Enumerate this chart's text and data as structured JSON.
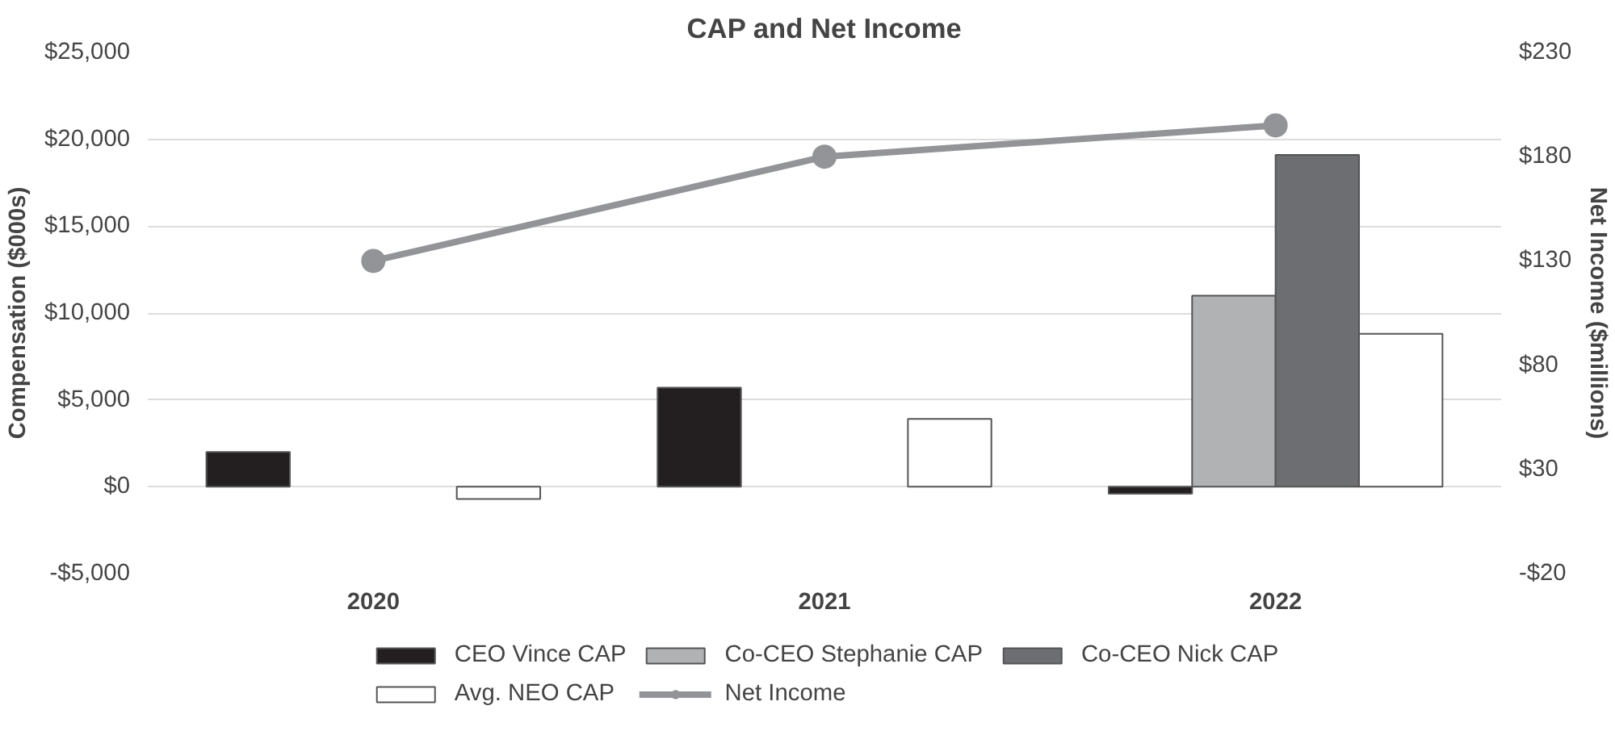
{
  "chart_data": {
    "type": "bar",
    "title": "CAP and Net Income",
    "ylabel": "Compensation ($000s)",
    "y2label": "Net Income ($millions)",
    "categories": [
      "2020",
      "2021",
      "2022"
    ],
    "series": [
      {
        "name": "CEO Vince CAP",
        "color": "#231f20",
        "values": [
          2000,
          5700,
          -400
        ]
      },
      {
        "name": "Co-CEO Stephanie CAP",
        "color": "#b1b2b4",
        "values": [
          null,
          null,
          11000
        ]
      },
      {
        "name": "Co-CEO Nick CAP",
        "color": "#6d6e71",
        "values": [
          null,
          null,
          19100
        ]
      },
      {
        "name": "Avg. NEO CAP",
        "color": "#ffffff",
        "values": [
          -700,
          3900,
          8800
        ]
      },
      {
        "name": "Net Income",
        "type": "line",
        "axis": "y2",
        "color": "#929497",
        "values": [
          130,
          180,
          195
        ]
      }
    ],
    "ylim": [
      -5000,
      25000
    ],
    "yticks": [
      {
        "value": -5000,
        "label": "-$5,000"
      },
      {
        "value": 0,
        "label": "$0"
      },
      {
        "value": 5000,
        "label": "$5,000"
      },
      {
        "value": 10000,
        "label": "$10,000"
      },
      {
        "value": 15000,
        "label": "$15,000"
      },
      {
        "value": 20000,
        "label": "$20,000"
      },
      {
        "value": 25000,
        "label": "$25,000"
      }
    ],
    "y2lim": [
      -20,
      230
    ],
    "y2ticks": [
      {
        "value": -20,
        "label": "-$20"
      },
      {
        "value": 30,
        "label": "$30"
      },
      {
        "value": 80,
        "label": "$80"
      },
      {
        "value": 130,
        "label": "$130"
      },
      {
        "value": 180,
        "label": "$180"
      },
      {
        "value": 230,
        "label": "$230"
      }
    ],
    "grid": "y",
    "legend": "bottom",
    "marker": "circle"
  }
}
